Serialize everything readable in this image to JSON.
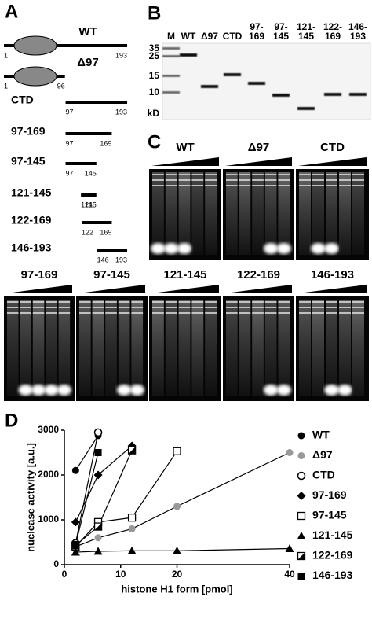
{
  "panel_a": {
    "label": "A",
    "constructs": [
      {
        "name": "WT",
        "start": 1,
        "end": 193,
        "domain": true
      },
      {
        "name": "Δ97",
        "start": 1,
        "end": 96,
        "domain": true
      },
      {
        "name": "CTD",
        "start": 97,
        "end": 193,
        "domain": false
      },
      {
        "name": "97-169",
        "start": 97,
        "end": 169,
        "domain": false
      },
      {
        "name": "97-145",
        "start": 97,
        "end": 145,
        "domain": false
      },
      {
        "name": "121-145",
        "start": 121,
        "end": 145,
        "domain": false
      },
      {
        "name": "122-169",
        "start": 122,
        "end": 169,
        "domain": false
      },
      {
        "name": "146-193",
        "start": 146,
        "end": 193,
        "domain": false
      }
    ]
  },
  "panel_b": {
    "label": "B",
    "lanes": [
      "M",
      "WT",
      "Δ97",
      "CTD",
      "97-169",
      "97-145",
      "121-145",
      "122-169",
      "146-193"
    ],
    "markers": [
      35,
      25,
      15,
      10
    ],
    "unit": "kD"
  },
  "panel_c": {
    "label": "C",
    "gels": [
      "WT",
      "Δ97",
      "CTD",
      "97-169",
      "97-145",
      "121-145",
      "122-169",
      "146-193"
    ]
  },
  "chart_data": {
    "type": "line",
    "panel": "D",
    "x_label": "histone H1 form [pmol]",
    "y_label": "nuclease activity [a.u.]",
    "x": [
      2,
      6,
      12,
      20,
      40
    ],
    "xlim": [
      0,
      40
    ],
    "xticks": [
      0,
      10,
      20,
      40
    ],
    "ylim": [
      0,
      3000
    ],
    "yticks": [
      0,
      1000,
      2000,
      3000
    ],
    "legend": "right",
    "series": [
      {
        "name": "WT",
        "color": "#000000",
        "marker": "circle",
        "values": [
          2100,
          2880,
          null,
          null,
          null
        ]
      },
      {
        "name": "Δ97",
        "color": "#999999",
        "marker": "circle",
        "values": [
          400,
          600,
          800,
          1300,
          2500
        ]
      },
      {
        "name": "CTD",
        "color": "#000000",
        "marker": "circle-open",
        "values": [
          480,
          2950,
          null,
          null,
          null
        ]
      },
      {
        "name": "97-169",
        "color": "#000000",
        "marker": "diamond",
        "values": [
          950,
          2000,
          2650,
          null,
          null
        ]
      },
      {
        "name": "97-145",
        "color": "#000000",
        "marker": "square-open",
        "values": [
          400,
          950,
          1050,
          2530,
          null
        ]
      },
      {
        "name": "121-145",
        "color": "#000000",
        "marker": "triangle",
        "values": [
          280,
          300,
          310,
          310,
          360
        ]
      },
      {
        "name": "122-169",
        "color": "#000000",
        "marker": "square-half",
        "values": [
          430,
          850,
          2550,
          null,
          null
        ]
      },
      {
        "name": "146-193",
        "color": "#000000",
        "marker": "square",
        "values": [
          450,
          2500,
          null,
          null,
          null
        ]
      }
    ]
  }
}
